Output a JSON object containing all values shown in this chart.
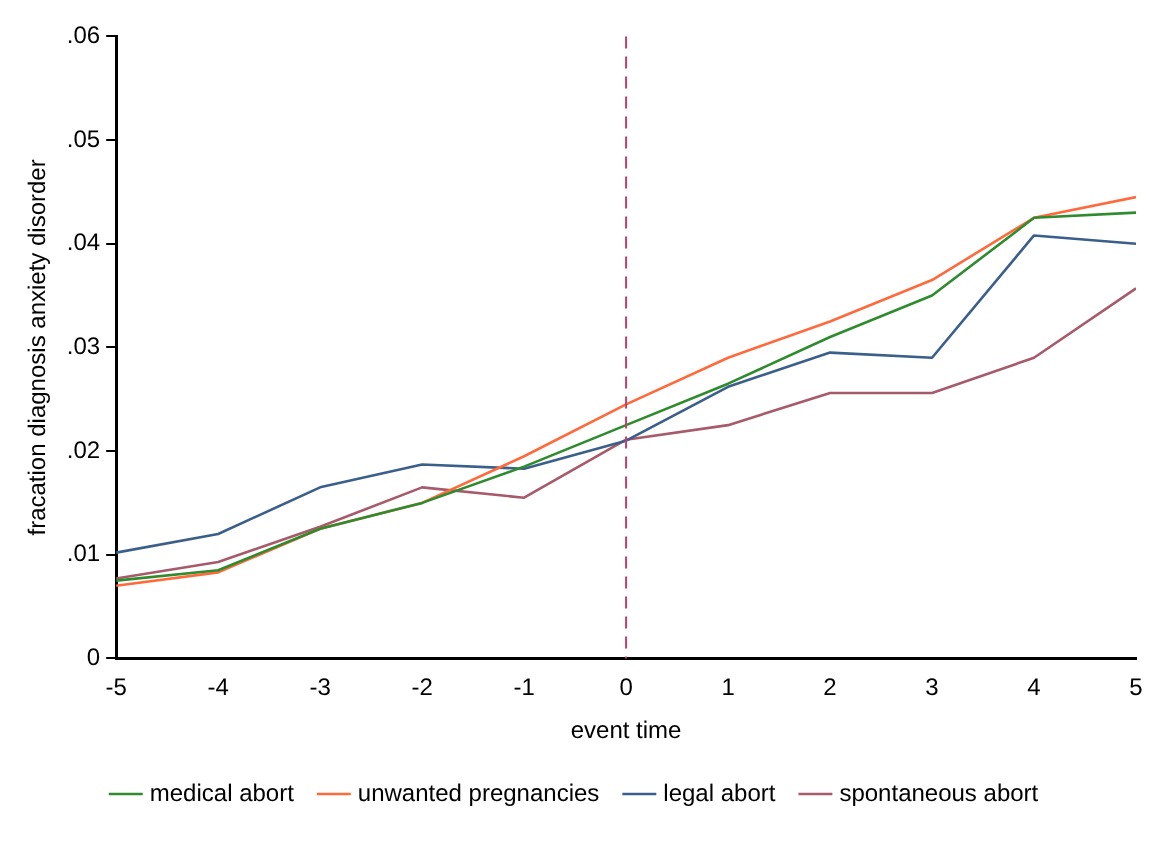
{
  "chart_data": {
    "type": "line",
    "xlabel": "event time",
    "ylabel": "fracation diagnosis anxiety disorder",
    "x": [
      -5,
      -4,
      -3,
      -2,
      -1,
      0,
      1,
      2,
      3,
      4,
      5
    ],
    "series": [
      {
        "name": "medical abort",
        "color": "#2e8b2e",
        "values": [
          0.0075,
          0.0085,
          0.0125,
          0.015,
          0.0185,
          0.0225,
          0.0265,
          0.031,
          0.035,
          0.0425,
          0.043
        ]
      },
      {
        "name": "unwanted pregnancies",
        "color": "#ff6a3d",
        "values": [
          0.007,
          0.0083,
          0.0125,
          0.015,
          0.0195,
          0.0245,
          0.029,
          0.0325,
          0.0365,
          0.0425,
          0.0445
        ]
      },
      {
        "name": "legal abort",
        "color": "#3a5f8a",
        "values": [
          0.0102,
          0.012,
          0.0165,
          0.0187,
          0.0183,
          0.021,
          0.0262,
          0.0295,
          0.029,
          0.0408,
          0.04
        ]
      },
      {
        "name": "spontaneous abort",
        "color": "#a65a6a",
        "values": [
          0.0077,
          0.0093,
          0.0127,
          0.0165,
          0.0155,
          0.0211,
          0.0225,
          0.0256,
          0.0256,
          0.029,
          0.0357
        ]
      }
    ],
    "xlim": [
      -5,
      5
    ],
    "xticks": [
      -5,
      -4,
      -3,
      -2,
      -1,
      0,
      1,
      2,
      3,
      4,
      5
    ],
    "ylim": [
      0,
      0.06
    ],
    "yticks": [
      {
        "value": 0,
        "label": "0"
      },
      {
        "value": 0.01,
        "label": ".01"
      },
      {
        "value": 0.02,
        "label": ".02"
      },
      {
        "value": 0.03,
        "label": ".03"
      },
      {
        "value": 0.04,
        "label": ".04"
      },
      {
        "value": 0.05,
        "label": ".05"
      },
      {
        "value": 0.06,
        "label": ".06"
      }
    ],
    "ref_lines": [
      {
        "axis": "x",
        "value": 0,
        "color": "#c0406a",
        "line_style": "dashed"
      }
    ],
    "grid": false,
    "legend": "bottom",
    "marker": "none",
    "line_style": "solid"
  }
}
